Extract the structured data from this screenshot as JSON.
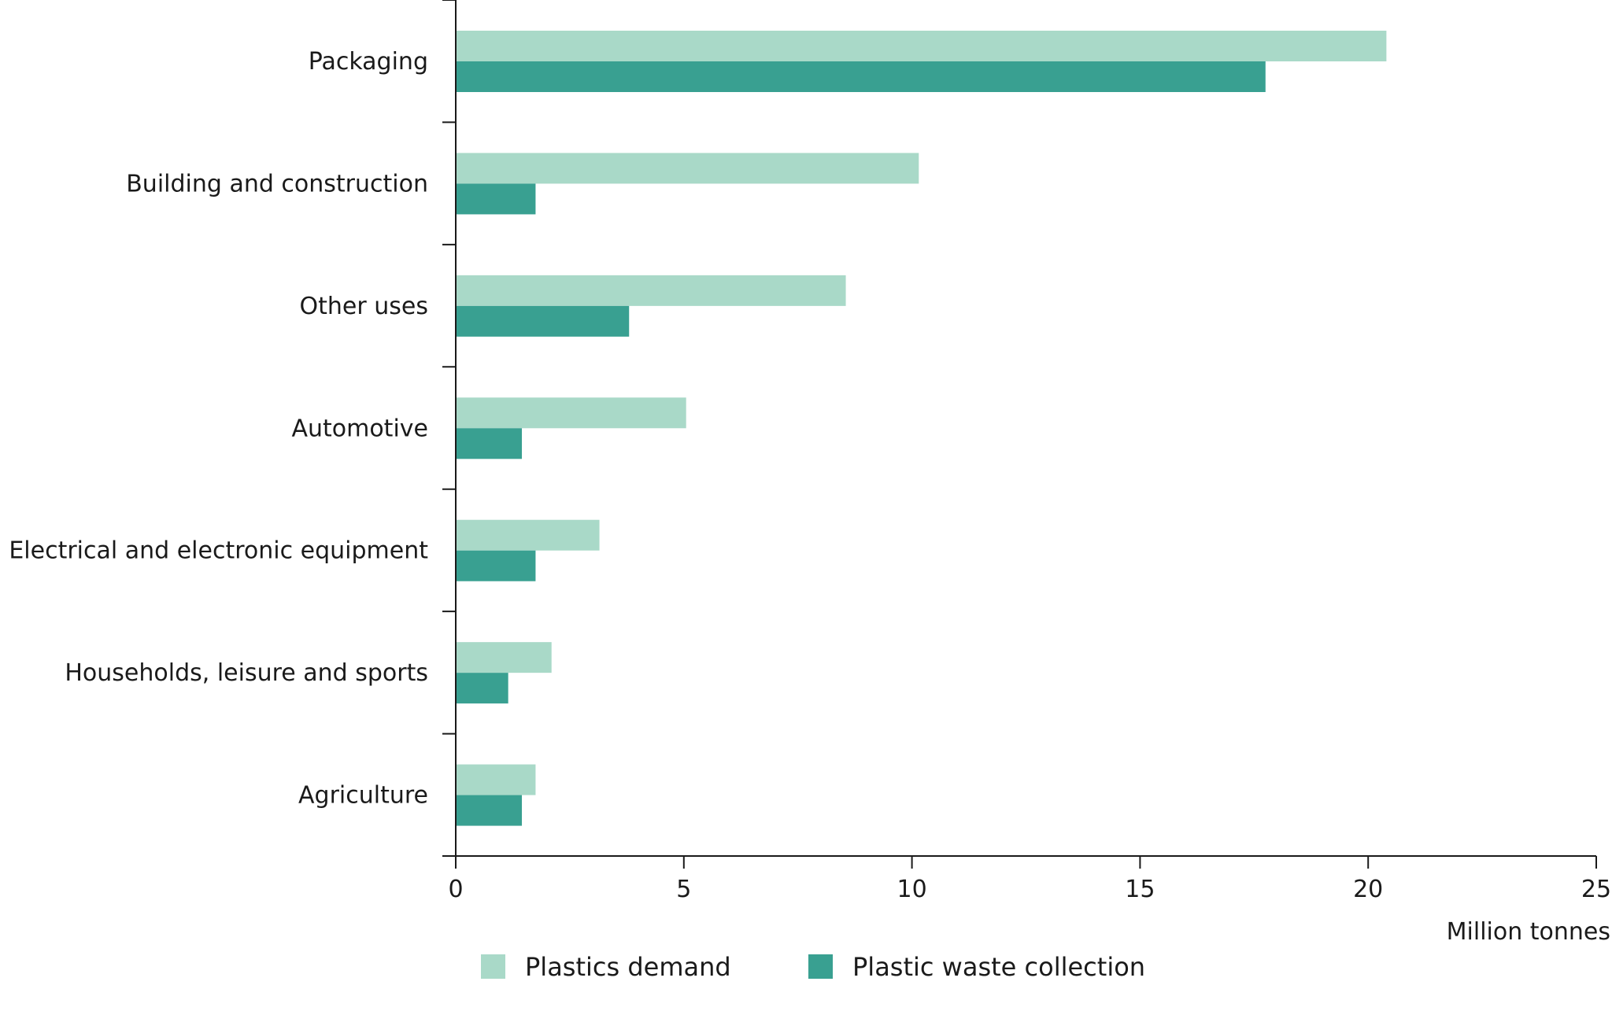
{
  "chart_data": {
    "type": "bar",
    "orientation": "horizontal",
    "categories": [
      "Packaging",
      "Building and construction",
      "Other uses",
      "Automotive",
      "Electrical and electronic equipment",
      "Households, leisure and sports",
      "Agriculture"
    ],
    "series": [
      {
        "name": "Plastics demand",
        "color": "#a9d9c8",
        "values": [
          20.4,
          10.15,
          8.55,
          5.05,
          3.15,
          2.1,
          1.75
        ]
      },
      {
        "name": "Plastic waste collection",
        "color": "#39a091",
        "values": [
          17.75,
          1.75,
          3.8,
          1.45,
          1.75,
          1.15,
          1.45
        ]
      }
    ],
    "xlabel": "Million tonnes",
    "xlim": [
      0,
      25
    ],
    "xticks": [
      0,
      5,
      10,
      15,
      20,
      25
    ],
    "xtick_labels": [
      "0",
      "5",
      "10",
      "15",
      "20",
      "25"
    ],
    "grid": false,
    "legend_position": "bottom"
  }
}
